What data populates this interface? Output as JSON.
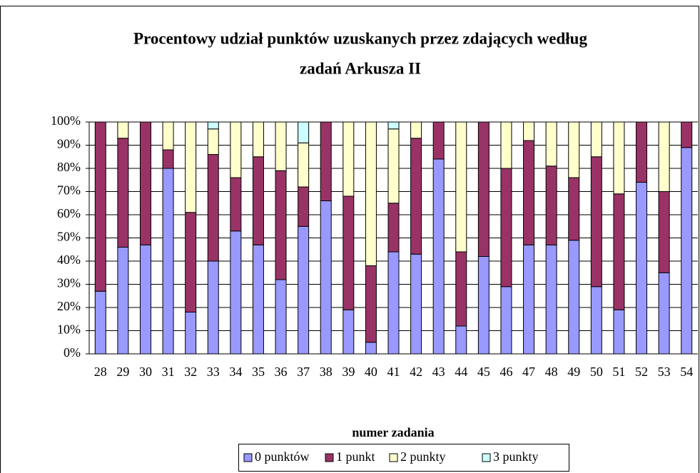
{
  "chart_data": {
    "type": "stacked_bar",
    "title": [
      "Procentowy udział punktów uzuskanych przez zdających według",
      "zadań Arkusza II"
    ],
    "x_label": "numer zadania",
    "categories": [
      "28",
      "29",
      "30",
      "31",
      "32",
      "33",
      "34",
      "35",
      "36",
      "37",
      "38",
      "39",
      "40",
      "41",
      "42",
      "43",
      "44",
      "45",
      "46",
      "47",
      "48",
      "49",
      "50",
      "51",
      "52",
      "53",
      "54"
    ],
    "series": [
      {
        "name": "0 punktów",
        "color": "#9999ff",
        "values": [
          27,
          46,
          47,
          80,
          18,
          40,
          53,
          47,
          32,
          55,
          66,
          19,
          5,
          44,
          43,
          84,
          12,
          42,
          29,
          47,
          47,
          49,
          29,
          19,
          74,
          35,
          89
        ]
      },
      {
        "name": "1 punkt",
        "color": "#993366",
        "values": [
          73,
          47,
          53,
          8,
          43,
          46,
          23,
          38,
          47,
          17,
          34,
          49,
          33,
          21,
          50,
          16,
          32,
          58,
          51,
          45,
          34,
          27,
          56,
          50,
          26,
          35,
          11
        ]
      },
      {
        "name": "2 punkty",
        "color": "#ffffcc",
        "values": [
          0,
          7,
          0,
          12,
          39,
          11,
          24,
          15,
          21,
          19,
          0,
          32,
          62,
          32,
          7,
          0,
          56,
          0,
          20,
          8,
          19,
          24,
          15,
          31,
          0,
          30,
          0
        ]
      },
      {
        "name": "3 punkty",
        "color": "#ccffff",
        "values": [
          0,
          0,
          0,
          0,
          0,
          3,
          0,
          0,
          0,
          9,
          0,
          0,
          0,
          3,
          0,
          0,
          0,
          0,
          0,
          0,
          0,
          0,
          0,
          0,
          0,
          0,
          0
        ]
      }
    ],
    "ylim": [
      0,
      100
    ],
    "yticks": [
      {
        "value": 0,
        "label": "0%"
      },
      {
        "value": 10,
        "label": "10%"
      },
      {
        "value": 20,
        "label": "20%"
      },
      {
        "value": 30,
        "label": "30%"
      },
      {
        "value": 40,
        "label": "40%"
      },
      {
        "value": 50,
        "label": "50%"
      },
      {
        "value": 60,
        "label": "60%"
      },
      {
        "value": 70,
        "label": "70%"
      },
      {
        "value": 80,
        "label": "80%"
      },
      {
        "value": 90,
        "label": "90%"
      },
      {
        "value": 100,
        "label": "100%"
      }
    ],
    "grid": true,
    "legend": "bottom"
  }
}
